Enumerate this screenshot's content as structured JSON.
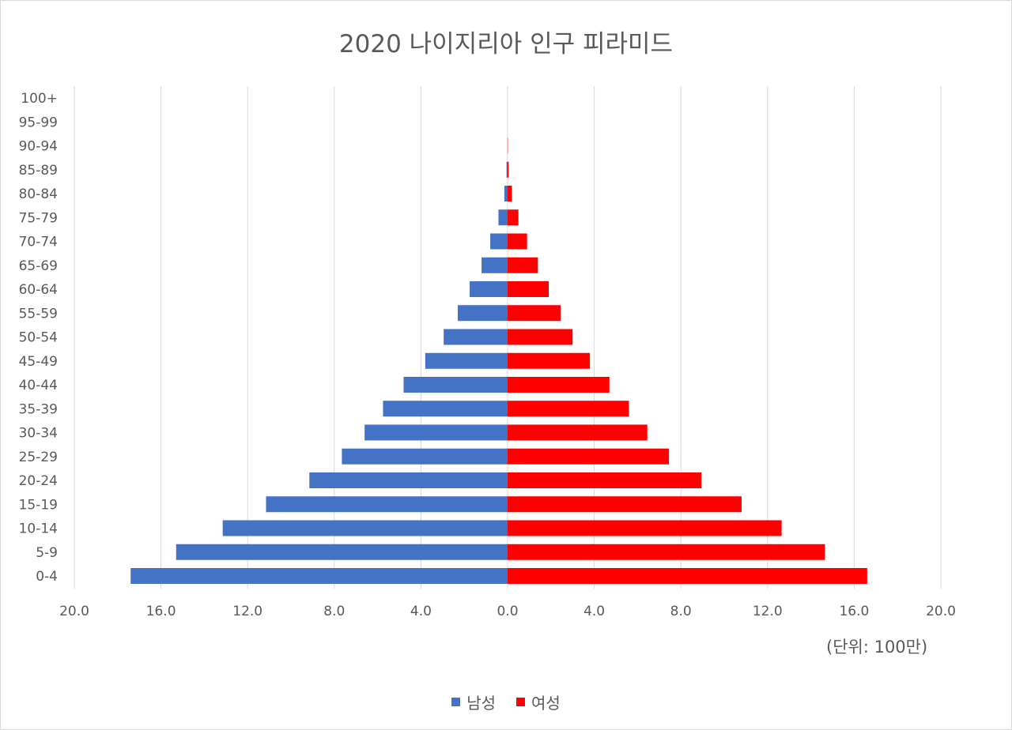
{
  "chart_data": {
    "type": "bar",
    "orientation": "horizontal-population-pyramid",
    "title": "2020 나이지리아 인구 피라미드",
    "unit_note": "(단위: 100만)",
    "categories": [
      "100+",
      "95-99",
      "90-94",
      "85-89",
      "80-84",
      "75-79",
      "70-74",
      "65-69",
      "60-64",
      "55-59",
      "50-54",
      "45-49",
      "40-44",
      "35-39",
      "30-34",
      "25-29",
      "20-24",
      "15-19",
      "10-14",
      "5-9",
      "0-4"
    ],
    "series": [
      {
        "name": "남성",
        "color": "#4472c4",
        "values": [
          0.0,
          0.0,
          0.01,
          0.05,
          0.15,
          0.42,
          0.8,
          1.2,
          1.75,
          2.3,
          2.95,
          3.8,
          4.8,
          5.75,
          6.6,
          7.65,
          9.15,
          11.15,
          13.15,
          15.3,
          17.4
        ]
      },
      {
        "name": "여성",
        "color": "#ff0000",
        "values": [
          0.0,
          0.0,
          0.01,
          0.05,
          0.2,
          0.5,
          0.9,
          1.4,
          1.9,
          2.45,
          3.0,
          3.8,
          4.7,
          5.6,
          6.45,
          7.45,
          8.95,
          10.8,
          12.65,
          14.65,
          16.6
        ]
      }
    ],
    "x_ticks": [
      "20.0",
      "16.0",
      "12.0",
      "8.0",
      "4.0",
      "0.0",
      "4.0",
      "8.0",
      "12.0",
      "16.0",
      "20.0"
    ],
    "xlim": [
      -20,
      20
    ],
    "grid": "vertical gridlines",
    "legend_position": "bottom"
  }
}
